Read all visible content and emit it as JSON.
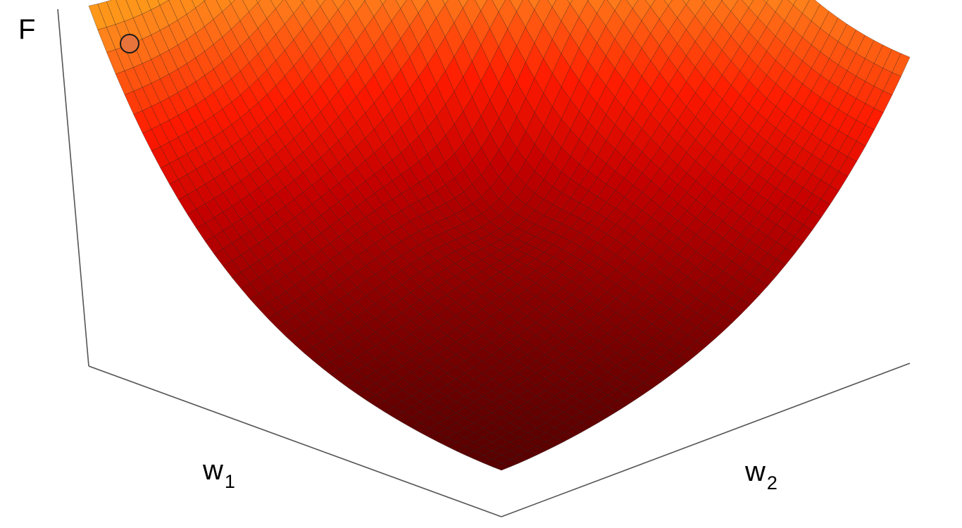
{
  "axes": {
    "vertical_label": "F",
    "w1_label": "w",
    "w1_subscript": "1",
    "w2_label": "w",
    "w2_subscript": "2"
  },
  "surface": {
    "colormap": [
      "#5a0000",
      "#8a0000",
      "#c40000",
      "#ff1a00",
      "#ff7a1a",
      "#ffc21a",
      "#f2f23a",
      "#f4f4ec"
    ],
    "mesh_line_color": "#1a1a1a",
    "axis_line_color": "#555555"
  },
  "marker": {
    "color": "#e8743b",
    "stroke": "#1a1a1a"
  }
}
